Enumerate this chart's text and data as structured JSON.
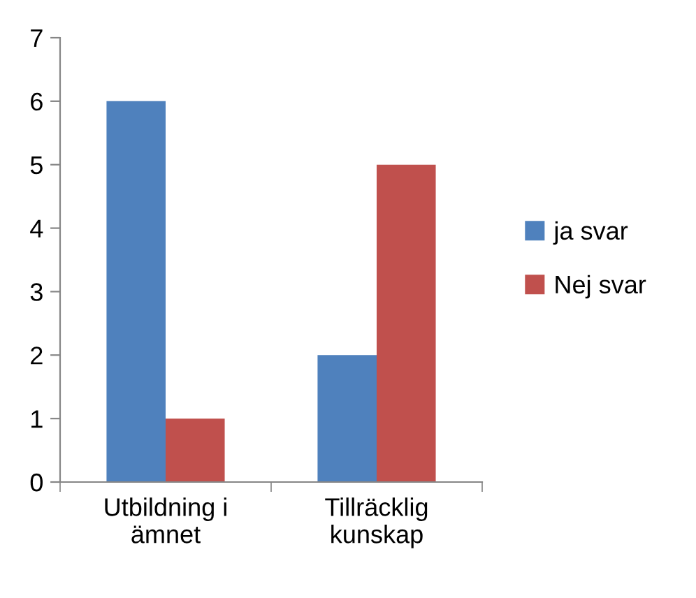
{
  "chart_data": {
    "type": "bar",
    "categories": [
      "Utbildning i\nämnet",
      "Tillräcklig\nkunskap"
    ],
    "series": [
      {
        "name": "ja svar",
        "color": "#4f81bd",
        "values": [
          6,
          2
        ]
      },
      {
        "name": "Nej svar",
        "color": "#c0504d",
        "values": [
          1,
          5
        ]
      }
    ],
    "ylim": [
      0,
      7
    ],
    "yticks": [
      0,
      1,
      2,
      3,
      4,
      5,
      6,
      7
    ],
    "grid": false,
    "legend": "right"
  }
}
